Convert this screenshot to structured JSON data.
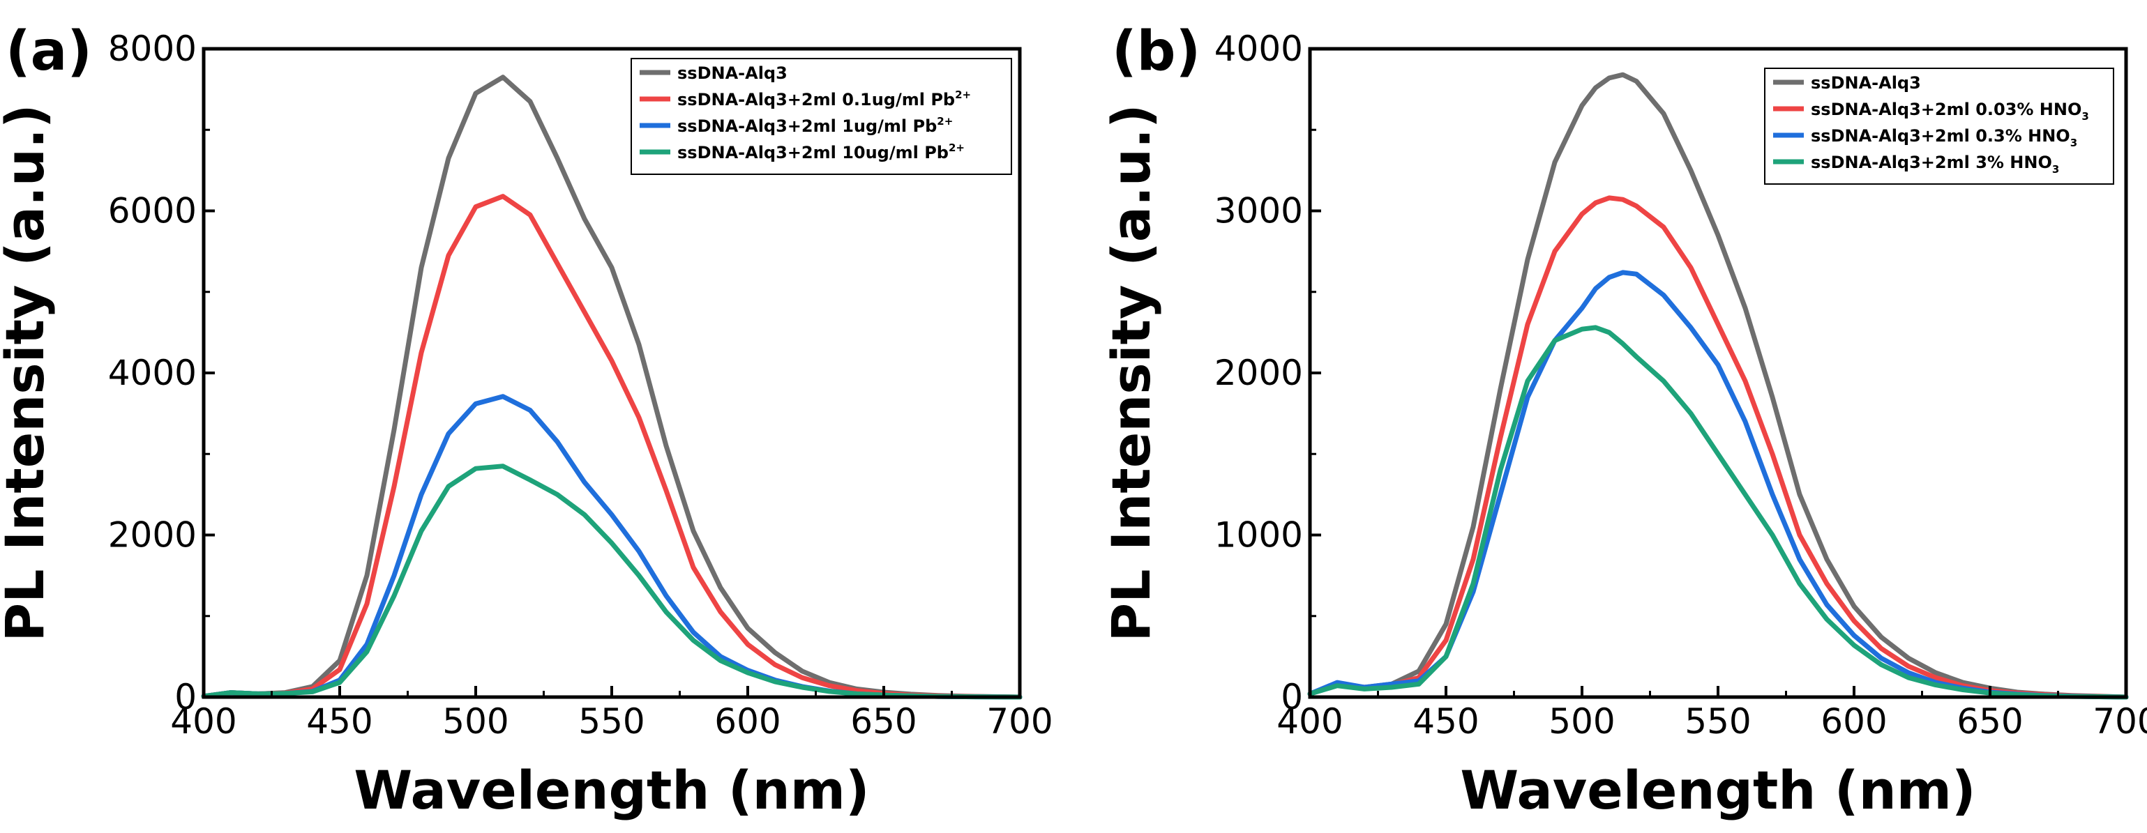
{
  "colors": {
    "gray": "#6e6e6e",
    "red": "#ee4444",
    "blue": "#1f6fdc",
    "green": "#1ea37a",
    "axis": "#000000"
  },
  "chart_data": [
    {
      "type": "line",
      "panel_label": "(a)",
      "title": "",
      "xlabel": "Wavelength  (nm)",
      "ylabel": "PL Intensity  (a.u.)",
      "xlim": [
        400,
        700
      ],
      "ylim": [
        0,
        8000
      ],
      "xticks": [
        400,
        450,
        500,
        550,
        600,
        650,
        700
      ],
      "yticks": [
        0,
        2000,
        4000,
        6000,
        8000
      ],
      "legend_position": "top-right",
      "x": [
        400,
        410,
        420,
        430,
        440,
        450,
        460,
        470,
        480,
        490,
        500,
        510,
        520,
        530,
        540,
        550,
        560,
        570,
        580,
        590,
        600,
        610,
        620,
        630,
        640,
        650,
        660,
        670,
        680,
        690,
        700
      ],
      "series": [
        {
          "name": "ssDNA-Alq3",
          "legend": {
            "text": "ssDNA-Alq3",
            "sup": "",
            "sub": ""
          },
          "color_key": "gray",
          "values": [
            10,
            55,
            40,
            55,
            130,
            450,
            1500,
            3300,
            5300,
            6650,
            7450,
            7650,
            7350,
            6650,
            5900,
            5300,
            4350,
            3100,
            2050,
            1350,
            850,
            550,
            320,
            180,
            100,
            60,
            35,
            20,
            10,
            5,
            0
          ]
        },
        {
          "name": "ssDNA-Alq3+2ml 0.1ug/ml Pb2+",
          "legend": {
            "text": "ssDNA-Alq3+2ml 0.1ug/ml Pb",
            "sup": "2+",
            "sub": ""
          },
          "color_key": "red",
          "values": [
            10,
            55,
            40,
            50,
            100,
            340,
            1150,
            2600,
            4250,
            5450,
            6050,
            6180,
            5950,
            5350,
            4750,
            4150,
            3450,
            2550,
            1600,
            1050,
            650,
            400,
            240,
            140,
            80,
            45,
            25,
            15,
            8,
            4,
            0
          ]
        },
        {
          "name": "ssDNA-Alq3+2ml 1ug/ml Pb2+",
          "legend": {
            "text": "ssDNA-Alq3+2ml 1ug/ml Pb",
            "sup": "2+",
            "sub": ""
          },
          "color_key": "blue",
          "values": [
            10,
            55,
            40,
            45,
            70,
            210,
            650,
            1500,
            2500,
            3250,
            3620,
            3710,
            3540,
            3150,
            2650,
            2250,
            1800,
            1250,
            800,
            500,
            330,
            210,
            130,
            75,
            40,
            25,
            15,
            8,
            4,
            2,
            0
          ]
        },
        {
          "name": "ssDNA-Alq3+2ml 10ug/ml Pb2+",
          "legend": {
            "text": "ssDNA-Alq3+2ml 10ug/ml Pb",
            "sup": "2+",
            "sub": ""
          },
          "color_key": "green",
          "values": [
            10,
            55,
            40,
            45,
            65,
            180,
            560,
            1250,
            2050,
            2600,
            2820,
            2850,
            2680,
            2500,
            2250,
            1900,
            1500,
            1050,
            700,
            450,
            300,
            190,
            120,
            70,
            40,
            25,
            15,
            8,
            4,
            2,
            0
          ]
        }
      ]
    },
    {
      "type": "line",
      "panel_label": "(b)",
      "title": "",
      "xlabel": "Wavelength  (nm)",
      "ylabel": "PL Intensity  (a.u.)",
      "xlim": [
        400,
        700
      ],
      "ylim": [
        0,
        4000
      ],
      "xticks": [
        400,
        450,
        500,
        550,
        600,
        650,
        700
      ],
      "yticks": [
        0,
        1000,
        2000,
        3000,
        4000
      ],
      "legend_position": "top-right",
      "x": [
        400,
        410,
        420,
        430,
        440,
        450,
        460,
        470,
        480,
        490,
        500,
        505,
        510,
        515,
        520,
        530,
        540,
        550,
        560,
        570,
        580,
        590,
        600,
        610,
        620,
        630,
        640,
        650,
        660,
        670,
        680,
        690,
        700
      ],
      "series": [
        {
          "name": "ssDNA-Alq3",
          "legend": {
            "text": "ssDNA-Alq3",
            "sup": "",
            "sub": ""
          },
          "color_key": "gray",
          "values": [
            20,
            80,
            60,
            80,
            160,
            450,
            1050,
            1900,
            2700,
            3300,
            3650,
            3760,
            3820,
            3840,
            3800,
            3600,
            3250,
            2850,
            2400,
            1850,
            1250,
            850,
            560,
            370,
            240,
            150,
            90,
            55,
            30,
            18,
            10,
            5,
            0
          ]
        },
        {
          "name": "ssDNA-Alq3+2ml 0.03% HNO3",
          "legend": {
            "text": "ssDNA-Alq3+2ml 0.03% HNO",
            "sup": "",
            "sub": "3"
          },
          "color_key": "red",
          "values": [
            20,
            80,
            60,
            75,
            120,
            350,
            850,
            1600,
            2300,
            2750,
            2980,
            3050,
            3080,
            3070,
            3030,
            2900,
            2650,
            2300,
            1950,
            1500,
            1000,
            700,
            470,
            300,
            190,
            120,
            70,
            40,
            25,
            15,
            8,
            4,
            0
          ]
        },
        {
          "name": "ssDNA-Alq3+2ml 0.3% HNO3",
          "legend": {
            "text": "ssDNA-Alq3+2ml 0.3% HNO",
            "sup": "",
            "sub": "3"
          },
          "color_key": "blue",
          "values": [
            20,
            90,
            60,
            80,
            100,
            250,
            650,
            1250,
            1850,
            2200,
            2400,
            2520,
            2590,
            2620,
            2610,
            2480,
            2280,
            2050,
            1700,
            1250,
            850,
            570,
            380,
            240,
            150,
            90,
            55,
            30,
            18,
            10,
            5,
            2,
            0
          ]
        },
        {
          "name": "ssDNA-Alq3+2ml 3% HNO3",
          "legend": {
            "text": "ssDNA-Alq3+2ml 3% HNO",
            "sup": "",
            "sub": "3"
          },
          "color_key": "green",
          "values": [
            20,
            70,
            50,
            60,
            80,
            250,
            700,
            1400,
            1950,
            2200,
            2270,
            2280,
            2250,
            2180,
            2100,
            1950,
            1750,
            1500,
            1250,
            1000,
            700,
            480,
            320,
            200,
            120,
            75,
            45,
            25,
            15,
            8,
            4,
            2,
            0
          ]
        }
      ]
    }
  ]
}
